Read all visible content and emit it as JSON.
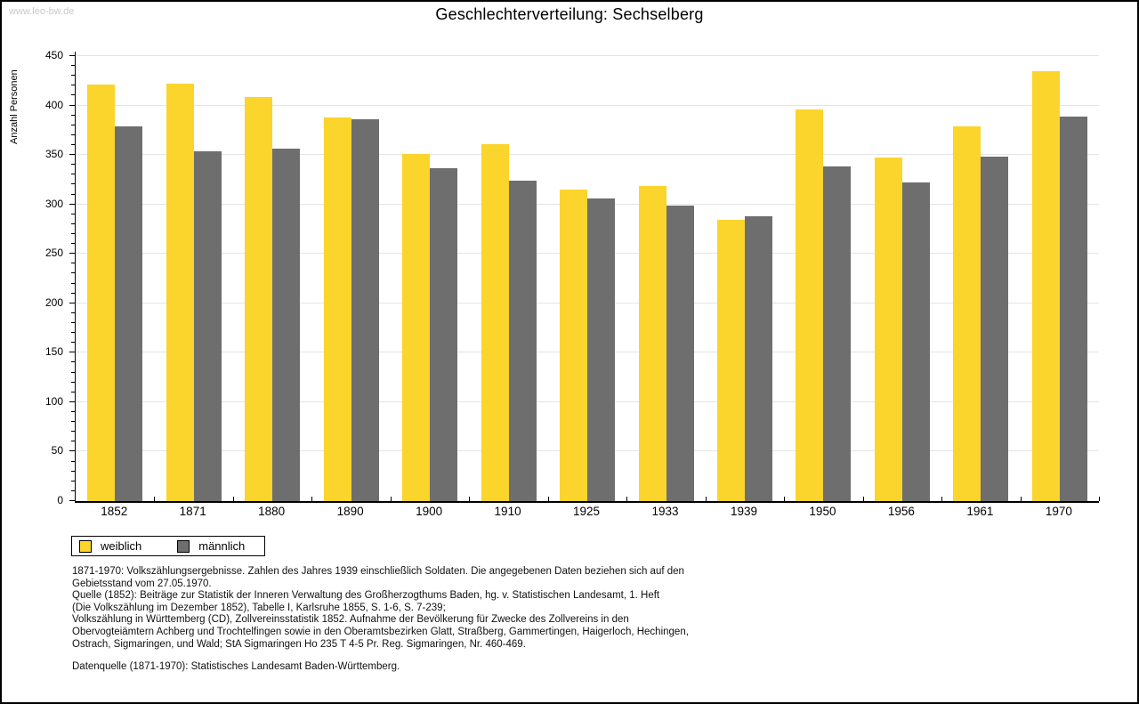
{
  "page": {
    "watermark": "www.leo-bw.de"
  },
  "chart_data": {
    "type": "bar",
    "title": "Geschlechterverteilung: Sechselberg",
    "xlabel": "",
    "ylabel": "Anzahl Personen",
    "ylim": [
      0,
      450
    ],
    "ytick_step": 50,
    "minor_tick_step": 10,
    "grid": true,
    "legend_position": "bottom-left",
    "categories": [
      "1852",
      "1871",
      "1880",
      "1890",
      "1900",
      "1910",
      "1925",
      "1933",
      "1939",
      "1950",
      "1956",
      "1961",
      "1970"
    ],
    "series": [
      {
        "name": "weiblich",
        "color": "#fbd42c",
        "values": [
          421,
          422,
          409,
          388,
          351,
          361,
          315,
          319,
          284,
          396,
          347,
          379,
          435
        ]
      },
      {
        "name": "männlich",
        "color": "#6e6e6e",
        "values": [
          379,
          354,
          356,
          386,
          337,
          324,
          306,
          299,
          288,
          338,
          322,
          348,
          389
        ]
      }
    ]
  },
  "footer": {
    "lines": [
      "1871-1970: Volkszählungsergebnisse. Zahlen des Jahres 1939 einschließlich Soldaten. Die angegebenen Daten beziehen sich auf den",
      "Gebietsstand vom 27.05.1970.",
      "Quelle (1852): Beiträge zur Statistik der Inneren Verwaltung des Großherzogthums Baden, hg. v. Statistischen Landesamt, 1. Heft",
      "(Die Volkszählung im Dezember 1852), Tabelle I, Karlsruhe 1855, S. 1-6, S. 7-239;",
      "Volkszählung in Württemberg (CD), Zollvereinsstatistik 1852. Aufnahme der Bevölkerung für Zwecke des Zollvereins in den",
      "Obervogteiämtern Achberg und Trochtelfingen sowie in den Oberamtsbezirken Glatt, Straßberg, Gammertingen, Haigerloch, Hechingen,",
      "Ostrach, Sigmaringen, und Wald; StA Sigmaringen Ho 235 T 4-5 Pr. Reg. Sigmaringen, Nr. 460-469."
    ],
    "datasource": "Datenquelle (1871-1970): Statistisches Landesamt Baden-Württemberg."
  },
  "colors": {
    "female_bar": "#fbd42c",
    "male_bar": "#6e6e6e",
    "gridline": "#e4e4e4",
    "axis": "#000000",
    "watermark": "#c9c9c9"
  }
}
